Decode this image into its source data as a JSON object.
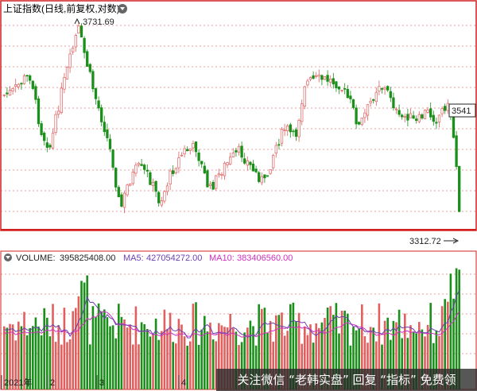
{
  "panel_title": "上证指数(日线,前复权,对数)",
  "volume_legend": {
    "volume_label": "VOLUME:",
    "volume_value": "395825408.00",
    "ma5_label": "MA5:",
    "ma5_value": "427054272.00",
    "ma10_label": "MA10:",
    "ma10_value": "383406560.00"
  },
  "colors": {
    "up": "#e06060",
    "down": "#1a8f1a",
    "ma5": "#6a3fb0",
    "ma10": "#d030c0",
    "grid": "#d04040",
    "frame": "#d02020"
  },
  "watermark": "关注微信 “老韩实盘” 回复 “指标” 免费领",
  "chart_data": [
    {
      "type": "candlestick",
      "title": "上证指数(日线,前复权,对数)",
      "scale": "log",
      "ylim": [
        3290,
        3760
      ],
      "grid": true,
      "annotations": [
        {
          "text": "3731.69",
          "value": 3731.69,
          "kind": "high"
        },
        {
          "text": "3312.72",
          "value": 3312.72,
          "kind": "low"
        },
        {
          "text": "3541",
          "value": 3541,
          "kind": "last-price"
        }
      ]
    },
    {
      "type": "bar",
      "title": "VOLUME",
      "series": [
        {
          "name": "VOLUME",
          "last": 395825408.0
        },
        {
          "name": "MA5",
          "last": 427054272.0
        },
        {
          "name": "MA10",
          "last": 383406560.0
        }
      ],
      "x_tick_labels": [
        "2021年",
        "2",
        "3",
        "4"
      ]
    }
  ]
}
